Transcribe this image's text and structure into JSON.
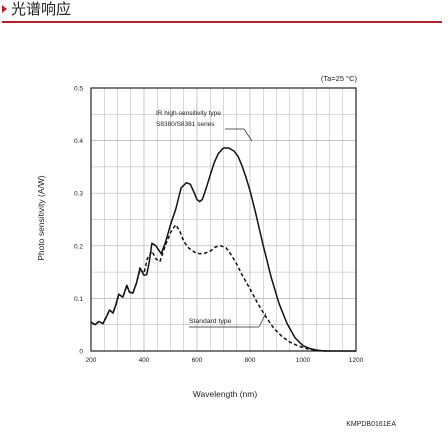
{
  "header": {
    "title": "光谱响应"
  },
  "chart_data": {
    "type": "line",
    "title": "",
    "xlabel": "Wavelength (nm)",
    "ylabel": "Photo sensitivity (A/W)",
    "xlim": [
      200,
      1200
    ],
    "ylim": [
      0,
      0.5
    ],
    "xticks": [
      200,
      400,
      600,
      800,
      1000,
      1200
    ],
    "yticks": [
      0,
      0.1,
      0.2,
      0.3,
      0.4,
      0.5
    ],
    "ytick_labels": [
      "0",
      "0.1",
      "0.2",
      "0.3",
      "0.4",
      "0.5"
    ],
    "grid": true,
    "condition": "(Ta=25 °C)",
    "code": "KMPDB0161EA",
    "series": [
      {
        "name": "IR high-sensitivity type S8380/S8381 series",
        "style": "solid",
        "x": [
          200,
          215,
          230,
          245,
          258,
          270,
          283,
          295,
          305,
          320,
          335,
          345,
          358,
          372,
          385,
          400,
          410,
          420,
          430,
          445,
          465,
          480,
          500,
          520,
          540,
          560,
          575,
          590,
          600,
          610,
          620,
          630,
          640,
          650,
          665,
          680,
          700,
          720,
          740,
          755,
          770,
          785,
          800,
          820,
          850,
          880,
          910,
          940,
          970,
          1000,
          1030,
          1060,
          1090,
          1120,
          1150,
          1200
        ],
        "y": [
          0.055,
          0.05,
          0.056,
          0.052,
          0.065,
          0.078,
          0.072,
          0.09,
          0.108,
          0.102,
          0.125,
          0.112,
          0.11,
          0.13,
          0.158,
          0.144,
          0.145,
          0.17,
          0.205,
          0.2,
          0.185,
          0.205,
          0.24,
          0.27,
          0.31,
          0.32,
          0.317,
          0.3,
          0.288,
          0.284,
          0.288,
          0.302,
          0.318,
          0.335,
          0.358,
          0.375,
          0.386,
          0.386,
          0.38,
          0.37,
          0.352,
          0.33,
          0.305,
          0.265,
          0.2,
          0.14,
          0.09,
          0.052,
          0.025,
          0.01,
          0.004,
          0.001,
          0,
          0,
          0,
          0
        ]
      },
      {
        "name": "Standard type",
        "style": "dashed",
        "x": [
          200,
          215,
          230,
          245,
          258,
          270,
          283,
          295,
          305,
          320,
          335,
          345,
          358,
          372,
          385,
          400,
          412,
          430,
          445,
          460,
          480,
          500,
          520,
          535,
          550,
          570,
          590,
          610,
          630,
          650,
          670,
          690,
          710,
          730,
          750,
          770,
          800,
          830,
          860,
          890,
          920,
          950,
          980,
          1010,
          1040,
          1060,
          1080,
          1100
        ],
        "y": [
          0.055,
          0.05,
          0.056,
          0.052,
          0.065,
          0.078,
          0.072,
          0.09,
          0.108,
          0.102,
          0.125,
          0.112,
          0.11,
          0.13,
          0.155,
          0.148,
          0.175,
          0.19,
          0.175,
          0.17,
          0.2,
          0.225,
          0.24,
          0.228,
          0.208,
          0.195,
          0.188,
          0.185,
          0.186,
          0.19,
          0.198,
          0.2,
          0.196,
          0.182,
          0.165,
          0.145,
          0.118,
          0.09,
          0.065,
          0.043,
          0.028,
          0.017,
          0.01,
          0.005,
          0.002,
          0.001,
          0,
          0
        ]
      }
    ]
  }
}
